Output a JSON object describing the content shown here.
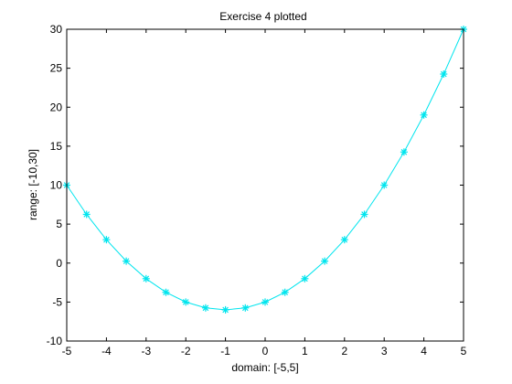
{
  "chart_data": {
    "type": "line",
    "title": "Exercise 4 plotted",
    "xlabel": "domain: [-5,5]",
    "ylabel": "range: [-10,30]",
    "xlim": [
      -5,
      5
    ],
    "ylim": [
      -10,
      30
    ],
    "x_ticks": [
      -5,
      -4,
      -3,
      -2,
      -1,
      0,
      1,
      2,
      3,
      4,
      5
    ],
    "y_ticks": [
      -10,
      -5,
      0,
      5,
      10,
      15,
      20,
      25,
      30
    ],
    "grid": false,
    "legend": "none",
    "line_color": "#00e5ee",
    "marker": "asterisk",
    "series": [
      {
        "x": [
          -5,
          -4.5,
          -4,
          -3.5,
          -3,
          -2.5,
          -2,
          -1.5,
          -1,
          -0.5,
          0,
          0.5,
          1,
          1.5,
          2,
          2.5,
          3,
          3.5,
          4,
          4.5,
          5
        ],
        "y": [
          10,
          6.25,
          3,
          0.25,
          -2,
          -3.75,
          -5,
          -5.75,
          -6,
          -5.75,
          -5,
          -3.75,
          -2,
          0.25,
          3,
          6.25,
          10,
          14.25,
          19,
          24.25,
          30
        ]
      }
    ]
  }
}
